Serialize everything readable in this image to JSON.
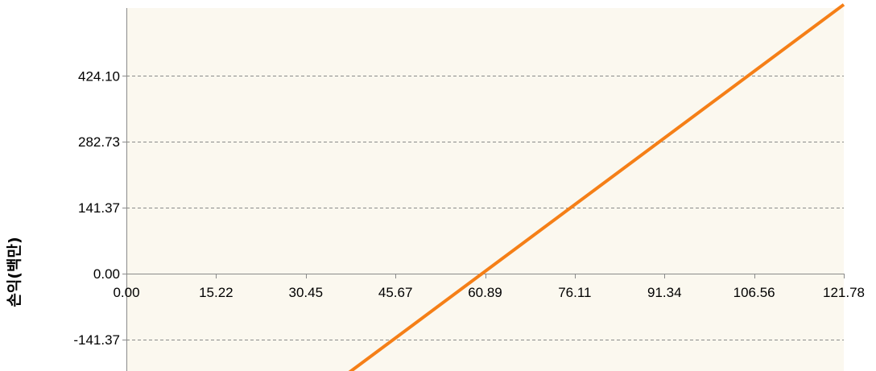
{
  "chart_data": {
    "type": "line",
    "title": "",
    "xlabel": "",
    "ylabel": "손익(백만)",
    "x_ticks": [
      "0.00",
      "15.22",
      "30.45",
      "45.67",
      "60.89",
      "76.11",
      "91.34",
      "106.56",
      "121.78"
    ],
    "y_ticks": [
      "424.10",
      "282.73",
      "141.37",
      "0.00",
      "-141.37"
    ],
    "xlim": [
      0,
      121.78
    ],
    "ylim": [
      -212,
      577
    ],
    "grid": "horizontal-dashed",
    "series": [
      {
        "color": "#F57F17",
        "x": [
          37.8,
          121.78
        ],
        "y": [
          -212,
          577
        ]
      }
    ],
    "plot_background": "#FBF8EF"
  }
}
